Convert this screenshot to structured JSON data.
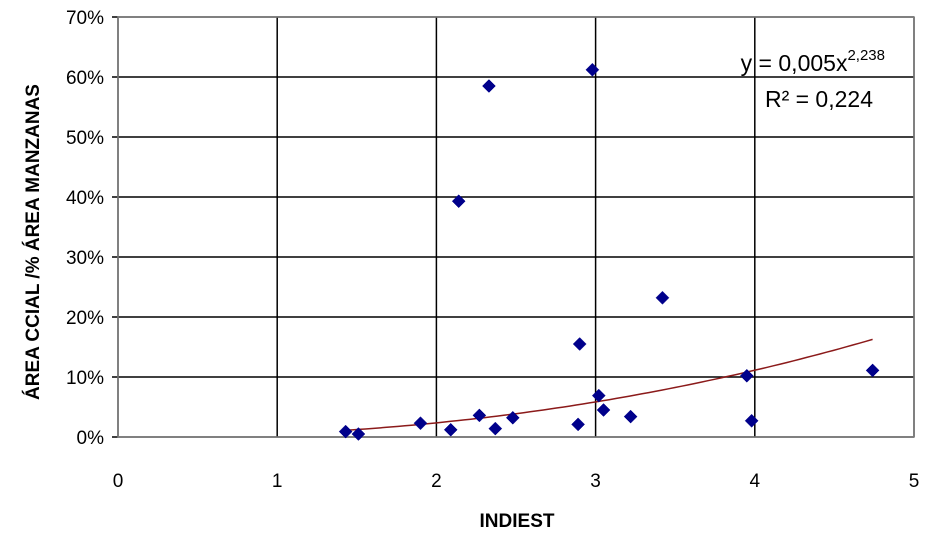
{
  "chart_data": {
    "type": "scatter",
    "xlabel": "INDIEST",
    "ylabel": "ÁREA CCIAL /% ÁREA MANZANAS",
    "xlim": [
      0,
      5
    ],
    "ylim": [
      0,
      0.7
    ],
    "x_ticks": [
      "0",
      "1",
      "2",
      "3",
      "4",
      "5"
    ],
    "y_ticks": [
      "0%",
      "10%",
      "20%",
      "30%",
      "40%",
      "50%",
      "60%",
      "70%"
    ],
    "grid": true,
    "marker": "diamond",
    "series": [
      {
        "points": [
          {
            "x": 1.43,
            "y": 0.009
          },
          {
            "x": 1.51,
            "y": 0.005
          },
          {
            "x": 1.9,
            "y": 0.023
          },
          {
            "x": 2.09,
            "y": 0.012
          },
          {
            "x": 2.14,
            "y": 0.393
          },
          {
            "x": 2.27,
            "y": 0.036
          },
          {
            "x": 2.33,
            "y": 0.585
          },
          {
            "x": 2.37,
            "y": 0.014
          },
          {
            "x": 2.48,
            "y": 0.032
          },
          {
            "x": 2.89,
            "y": 0.021
          },
          {
            "x": 2.9,
            "y": 0.155
          },
          {
            "x": 2.98,
            "y": 0.612
          },
          {
            "x": 3.02,
            "y": 0.069
          },
          {
            "x": 3.05,
            "y": 0.045
          },
          {
            "x": 3.22,
            "y": 0.034
          },
          {
            "x": 3.42,
            "y": 0.232
          },
          {
            "x": 3.95,
            "y": 0.102
          },
          {
            "x": 3.98,
            "y": 0.027
          },
          {
            "x": 4.74,
            "y": 0.111
          }
        ]
      }
    ],
    "trendline": {
      "type": "power",
      "coefficient": 0.005,
      "exponent": 2.238,
      "x_range": [
        1.43,
        4.74
      ],
      "color": "#8B1A1A",
      "equation_prefix": "y = 0,005x",
      "equation_exponent": "2,238",
      "r2_label": "R² = 0,224"
    },
    "colors": {
      "marker": "#00008B",
      "grid": "#000000",
      "trend": "#8B1A1A"
    }
  }
}
